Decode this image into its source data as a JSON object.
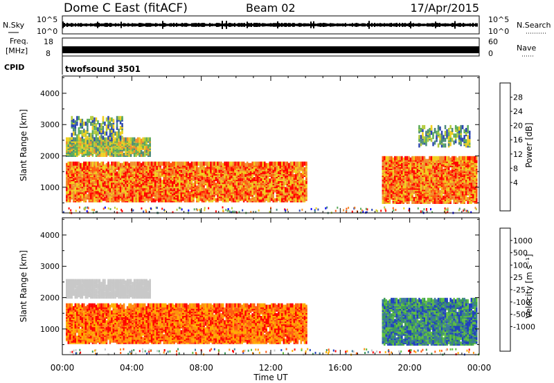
{
  "header": {
    "station": "Dome C East (fitACF)",
    "beam": "Beam 02",
    "date": "17/Apr/2015"
  },
  "nsky_panel": {
    "label": "N.Sky",
    "ticks": [
      "10^5",
      "10^0"
    ],
    "right_label": "N.Search",
    "right_ticks": [
      "10^5",
      "10^0"
    ]
  },
  "freq_panel": {
    "label_line1": "Freq.",
    "label_line2": "[MHz]",
    "ticks": [
      "18",
      "8"
    ],
    "right_label": "Nave",
    "right_ticks": [
      "60",
      "0"
    ]
  },
  "cpid": {
    "label": "CPID",
    "program": "twofsound 3501"
  },
  "chart_data": [
    {
      "type": "heatmap",
      "title": "",
      "quantity": "Power",
      "ylabel": "Slant Range [km]",
      "xlabel": "",
      "xlim": [
        "00:00",
        "24:00"
      ],
      "ylim": [
        180,
        4550
      ],
      "y_ticks": [
        "1000",
        "2000",
        "3000",
        "4000"
      ],
      "colorbar": {
        "label": "Power [dB]",
        "ticks": [
          "28",
          "24",
          "20",
          "16",
          "12",
          "8",
          "4"
        ],
        "colors": [
          "#0000ff",
          "#2c46b4",
          "#4c8a7a",
          "#5cac5c",
          "#b4cc3c",
          "#f0d020",
          "#f09030",
          "#ff5a10",
          "#ff0000"
        ]
      },
      "regions": [
        {
          "t_start": 0.2,
          "t_end": 14.0,
          "r_start": 650,
          "r_end": 1850,
          "level": "high"
        },
        {
          "t_start": 0.2,
          "t_end": 5.0,
          "r_start": 2100,
          "r_end": 2600,
          "level": "medium"
        },
        {
          "t_start": 0.5,
          "t_end": 3.5,
          "r_start": 2600,
          "r_end": 3300,
          "level": "low"
        },
        {
          "t_start": 18.4,
          "t_end": 23.9,
          "r_start": 600,
          "r_end": 2000,
          "level": "high"
        },
        {
          "t_start": 20.5,
          "t_end": 23.5,
          "r_start": 2400,
          "r_end": 3000,
          "level": "low"
        }
      ]
    },
    {
      "type": "heatmap",
      "title": "",
      "quantity": "Velocity",
      "ylabel": "Slant Range [km]",
      "xlabel": "Time UT",
      "xlim": [
        "00:00",
        "24:00"
      ],
      "ylim": [
        180,
        4550
      ],
      "x_ticks": [
        "00:00",
        "04:00",
        "08:00",
        "12:00",
        "16:00",
        "20:00",
        "00:00"
      ],
      "y_ticks": [
        "1000",
        "2000",
        "3000",
        "4000"
      ],
      "colorbar": {
        "label": "Velocity [m s⁻¹]",
        "ticks": [
          "1000",
          "500",
          "100",
          "25",
          "-25",
          "-100",
          "-500",
          "-1000"
        ],
        "colors": [
          "#ff0000",
          "#ff5a10",
          "#ff9010",
          "#ffb000",
          "#c8c8c8",
          "#c8c8c8",
          "#60c040",
          "#3c9a5a",
          "#3c7a9a",
          "#2040c0"
        ]
      },
      "regions": [
        {
          "t_start": 0.2,
          "t_end": 14.0,
          "r_start": 650,
          "r_end": 1850,
          "level": "negative"
        },
        {
          "t_start": 0.2,
          "t_end": 5.0,
          "r_start": 2100,
          "r_end": 2600,
          "level": "near-zero"
        },
        {
          "t_start": 18.4,
          "t_end": 23.9,
          "r_start": 600,
          "r_end": 2000,
          "level": "positive"
        }
      ]
    }
  ]
}
